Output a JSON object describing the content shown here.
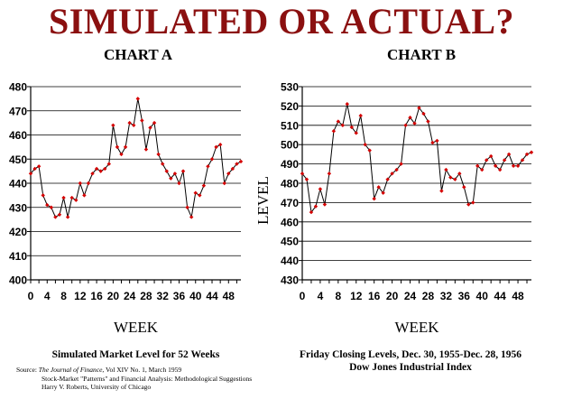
{
  "main_title": "SIMULATED OR ACTUAL?",
  "marker_color": "#d40000",
  "title_color": "#8b1010",
  "source": {
    "label": "Source:",
    "line1_italic": "The Journal of Finance",
    "line1_rest": ", Vol XIV No. 1, March 1959",
    "line2": "Stock-Market \"Patterns\" and Financial Analysis: Methodological Suggestions",
    "line3": "Harry V. Roberts, University of Chicago"
  },
  "chart_data": [
    {
      "type": "line",
      "title": "CHART A",
      "xlabel": "WEEK",
      "ylabel": "",
      "caption": [
        "Simulated Market Level for 52 Weeks"
      ],
      "xlim": [
        0,
        51
      ],
      "ylim": [
        400,
        480
      ],
      "yticks": [
        400,
        410,
        420,
        430,
        440,
        450,
        460,
        470,
        480
      ],
      "xticks": [
        0,
        4,
        8,
        12,
        16,
        20,
        24,
        28,
        32,
        36,
        40,
        44,
        48
      ],
      "xticks_minor": [
        2,
        6,
        10,
        14,
        18,
        22,
        26,
        30,
        34,
        38,
        42,
        46,
        50
      ],
      "grid": true,
      "x": [
        0,
        1,
        2,
        3,
        4,
        5,
        6,
        7,
        8,
        9,
        10,
        11,
        12,
        13,
        14,
        15,
        16,
        17,
        18,
        19,
        20,
        21,
        22,
        23,
        24,
        25,
        26,
        27,
        28,
        29,
        30,
        31,
        32,
        33,
        34,
        35,
        36,
        37,
        38,
        39,
        40,
        41,
        42,
        43,
        44,
        45,
        46,
        47,
        48,
        49,
        50,
        51
      ],
      "values": [
        444,
        446,
        447,
        435,
        431,
        430,
        426,
        427,
        434,
        426,
        434,
        433,
        440,
        435,
        440,
        444,
        446,
        445,
        446,
        448,
        464,
        455,
        452,
        455,
        465,
        464,
        475,
        466,
        454,
        463,
        465,
        452,
        448,
        445,
        442,
        444,
        440,
        445,
        430,
        426,
        436,
        435,
        439,
        447,
        450,
        455,
        456,
        440,
        444,
        446,
        448,
        449
      ]
    },
    {
      "type": "line",
      "title": "CHART B",
      "xlabel": "WEEK",
      "ylabel": "LEVEL",
      "caption": [
        "Friday Closing Levels, Dec. 30, 1955-Dec. 28, 1956",
        "Dow Jones Industrial Index"
      ],
      "xlim": [
        0,
        51
      ],
      "ylim": [
        430,
        530
      ],
      "yticks": [
        430,
        440,
        450,
        460,
        470,
        480,
        490,
        500,
        510,
        520,
        530
      ],
      "xticks": [
        0,
        4,
        8,
        12,
        16,
        20,
        24,
        28,
        32,
        36,
        40,
        44,
        48
      ],
      "xticks_minor": [
        2,
        6,
        10,
        14,
        18,
        22,
        26,
        30,
        34,
        38,
        42,
        46,
        50
      ],
      "grid": true,
      "x": [
        0,
        1,
        2,
        3,
        4,
        5,
        6,
        7,
        8,
        9,
        10,
        11,
        12,
        13,
        14,
        15,
        16,
        17,
        18,
        19,
        20,
        21,
        22,
        23,
        24,
        25,
        26,
        27,
        28,
        29,
        30,
        31,
        32,
        33,
        34,
        35,
        36,
        37,
        38,
        39,
        40,
        41,
        42,
        43,
        44,
        45,
        46,
        47,
        48,
        49,
        50,
        51
      ],
      "values": [
        485,
        482,
        465,
        468,
        477,
        469,
        485,
        507,
        512,
        510,
        521,
        509,
        506,
        515,
        500,
        497,
        472,
        478,
        475,
        482,
        485,
        487,
        490,
        510,
        514,
        511,
        519,
        516,
        512,
        501,
        502,
        476,
        487,
        483,
        482,
        485,
        478,
        469,
        470,
        489,
        487,
        492,
        494,
        489,
        487,
        492,
        495,
        489,
        489,
        492,
        495,
        496
      ]
    }
  ]
}
